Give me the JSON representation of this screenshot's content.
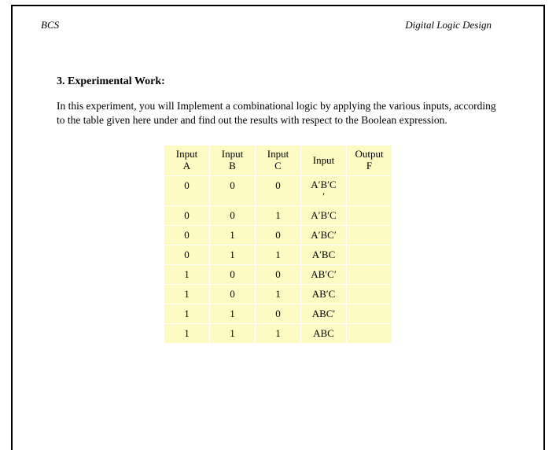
{
  "header": {
    "left": "BCS",
    "right": "Digital Logic Design"
  },
  "section": {
    "title": "3. Experimental Work:",
    "description": "In this experiment, you will Implement a combinational logic by applying the various inputs, according to the table given here under and find out the results with respect to the Boolean expression."
  },
  "table": {
    "headers": [
      {
        "line1": "Input",
        "line2": "A"
      },
      {
        "line1": "Input",
        "line2": "B"
      },
      {
        "line1": "Input",
        "line2": "C"
      },
      {
        "line1": "Input",
        "line2": ""
      },
      {
        "line1": "Output",
        "line2": "F"
      }
    ],
    "rows": [
      {
        "a": "0",
        "b": "0",
        "c": "0",
        "expr_line1": "A′B′C",
        "expr_line2": "′",
        "f": ""
      },
      {
        "a": "0",
        "b": "0",
        "c": "1",
        "expr_line1": "A′B′C",
        "expr_line2": "",
        "f": ""
      },
      {
        "a": "0",
        "b": "1",
        "c": "0",
        "expr_line1": "A′BC′",
        "expr_line2": "",
        "f": ""
      },
      {
        "a": "0",
        "b": "1",
        "c": "1",
        "expr_line1": "A′BC",
        "expr_line2": "",
        "f": ""
      },
      {
        "a": "1",
        "b": "0",
        "c": "0",
        "expr_line1": "AB′C′",
        "expr_line2": "",
        "f": ""
      },
      {
        "a": "1",
        "b": "0",
        "c": "1",
        "expr_line1": "AB′C",
        "expr_line2": "",
        "f": ""
      },
      {
        "a": "1",
        "b": "1",
        "c": "0",
        "expr_line1": "ABC′",
        "expr_line2": "",
        "f": ""
      },
      {
        "a": "1",
        "b": "1",
        "c": "1",
        "expr_line1": "ABC",
        "expr_line2": "",
        "f": ""
      }
    ],
    "cell_bg": "#fdfac3",
    "border_color": "#ffffff"
  }
}
